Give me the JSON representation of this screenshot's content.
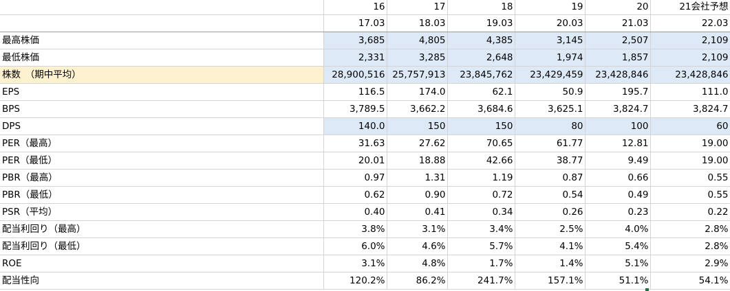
{
  "header_years": [
    "16",
    "17",
    "18",
    "19",
    "20",
    "21会社予想"
  ],
  "header_periods": [
    "17.03",
    "18.03",
    "19.03",
    "20.03",
    "21.03",
    "22.03"
  ],
  "colors": {
    "highlight_blue": "#dde9f6",
    "highlight_yellow": "#fdf1cf",
    "gridline": "#d4d4d4"
  },
  "rows": [
    {
      "label": "最高株価",
      "values": [
        "3,685",
        "4,805",
        "4,385",
        "3,145",
        "2,507",
        "2,109"
      ],
      "shade": "blue"
    },
    {
      "label": "最低株価",
      "values": [
        "2,331",
        "3,285",
        "2,648",
        "1,974",
        "1,857",
        "2,109"
      ],
      "shade": "blue"
    },
    {
      "label": "株数　（期中平均）",
      "values": [
        "28,900,516",
        "25,757,913",
        "23,845,762",
        "23,429,459",
        "23,428,846",
        "23,428,846"
      ],
      "shade": "blue",
      "label_shade": "yellow"
    },
    {
      "label": "EPS",
      "values": [
        "116.5",
        "174.0",
        "62.1",
        "50.9",
        "195.7",
        "111.0"
      ],
      "shade": ""
    },
    {
      "label": "BPS",
      "values": [
        "3,789.5",
        "3,662.2",
        "3,684.6",
        "3,625.1",
        "3,824.7",
        "3,824.7"
      ],
      "shade": ""
    },
    {
      "label": "DPS",
      "values": [
        "140.0",
        "150",
        "150",
        "80",
        "100",
        "60"
      ],
      "shade": "blue"
    },
    {
      "label": "PER（最高）",
      "values": [
        "31.63",
        "27.62",
        "70.65",
        "61.77",
        "12.81",
        "19.00"
      ],
      "shade": ""
    },
    {
      "label": "PER（最低）",
      "values": [
        "20.01",
        "18.88",
        "42.66",
        "38.77",
        "9.49",
        "19.00"
      ],
      "shade": ""
    },
    {
      "label": "PBR（最高）",
      "values": [
        "0.97",
        "1.31",
        "1.19",
        "0.87",
        "0.66",
        "0.55"
      ],
      "shade": ""
    },
    {
      "label": "PBR（最低）",
      "values": [
        "0.62",
        "0.90",
        "0.72",
        "0.54",
        "0.49",
        "0.55"
      ],
      "shade": ""
    },
    {
      "label": "PSR（平均）",
      "values": [
        "0.40",
        "0.41",
        "0.34",
        "0.26",
        "0.23",
        "0.22"
      ],
      "shade": ""
    },
    {
      "label": "配当利回り（最高）",
      "values": [
        "3.8%",
        "3.1%",
        "3.4%",
        "2.5%",
        "4.0%",
        "2.8%"
      ],
      "shade": ""
    },
    {
      "label": "配当利回り（最低）",
      "values": [
        "6.0%",
        "4.6%",
        "5.7%",
        "4.1%",
        "5.4%",
        "2.8%"
      ],
      "shade": ""
    },
    {
      "label": "ROE",
      "values": [
        "3.1%",
        "4.8%",
        "1.7%",
        "1.4%",
        "5.1%",
        "2.9%"
      ],
      "shade": ""
    },
    {
      "label": "配当性向",
      "values": [
        "120.2%",
        "86.2%",
        "241.7%",
        "157.1%",
        "51.1%",
        "54.1%"
      ],
      "shade": ""
    }
  ]
}
